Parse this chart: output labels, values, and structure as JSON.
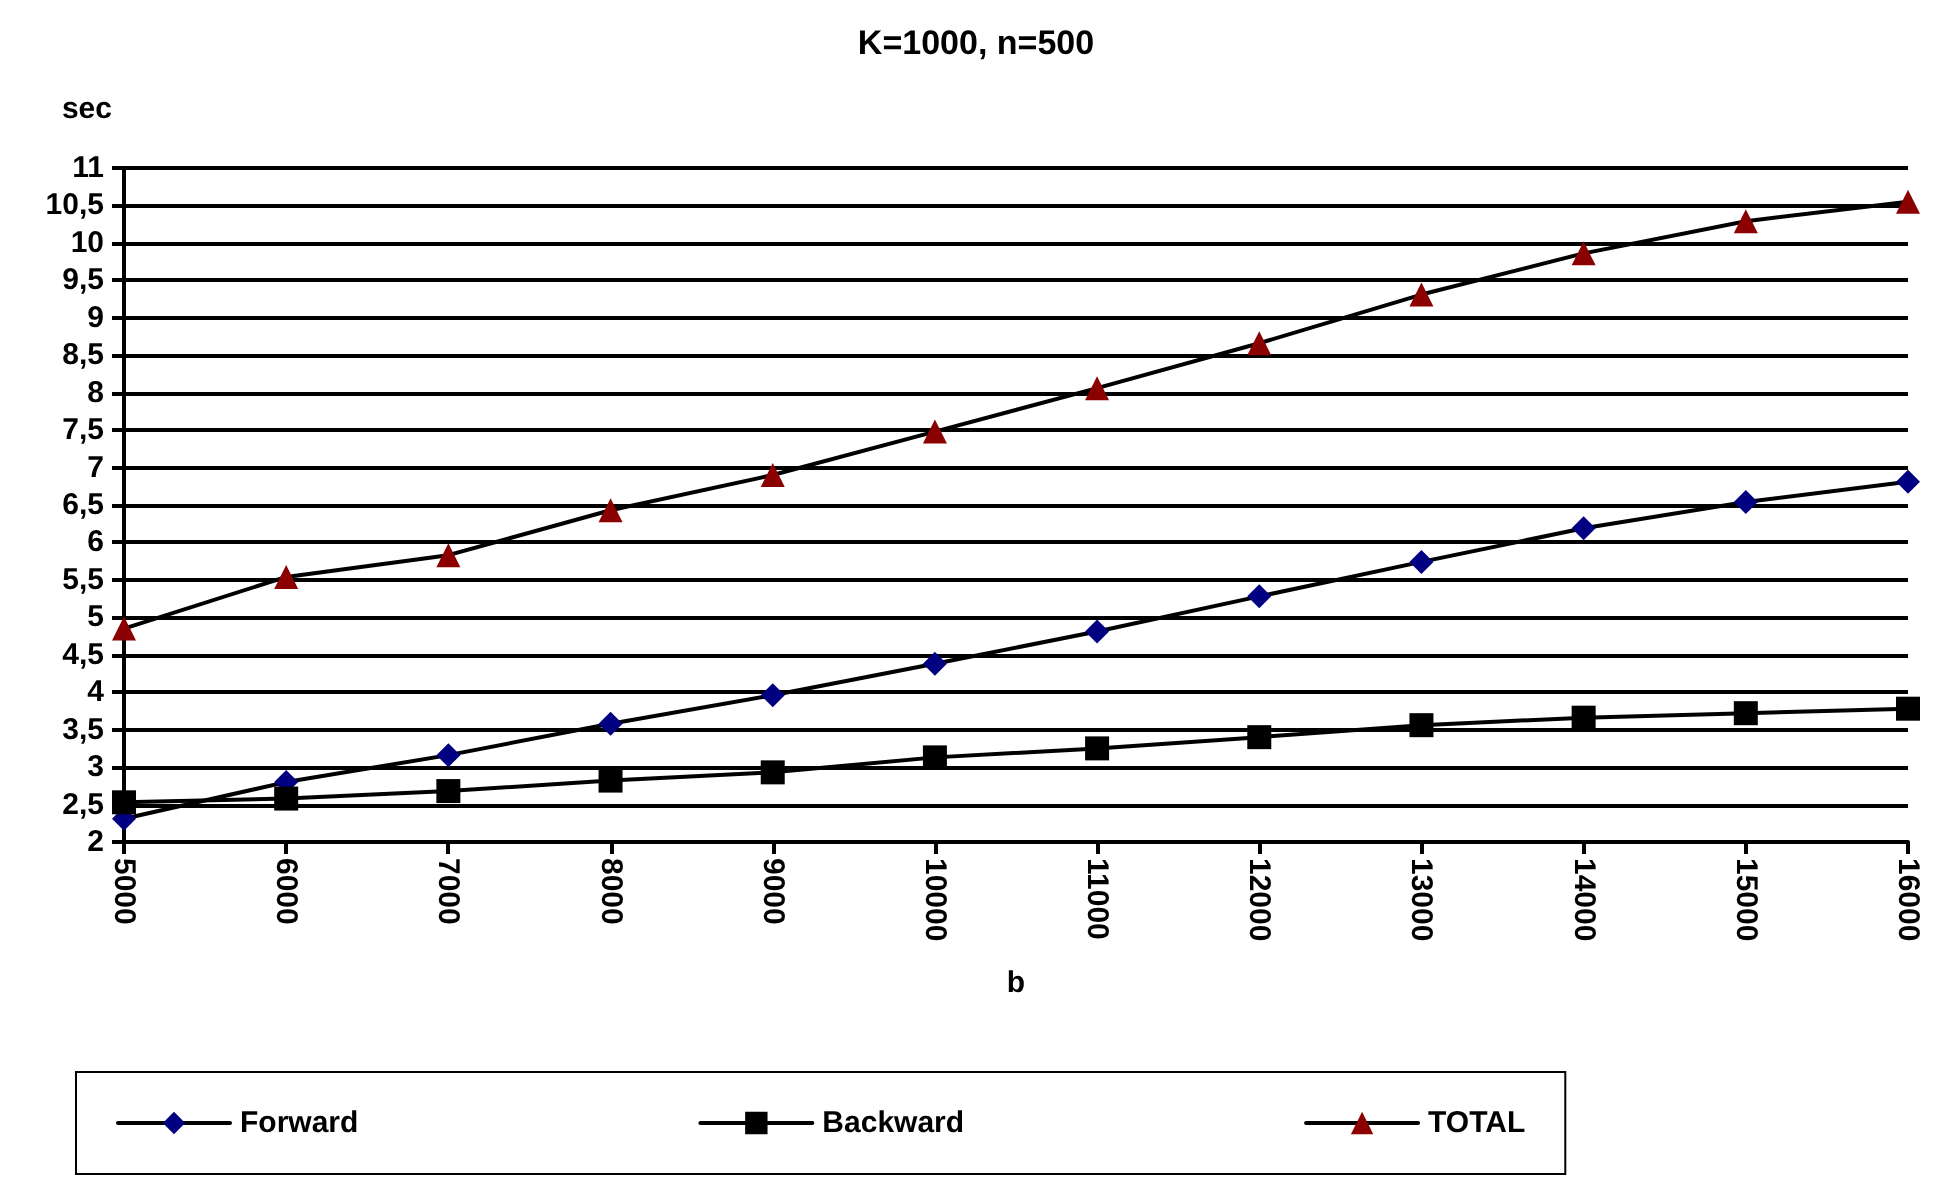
{
  "chart_data": {
    "type": "line",
    "title": "K=1000, n=500",
    "xlabel": "b",
    "ylabel": "sec",
    "categories": [
      "5000",
      "6000",
      "7000",
      "8000",
      "9000",
      "10000",
      "11000",
      "12000",
      "13000",
      "14000",
      "15000",
      "16000"
    ],
    "series": [
      {
        "name": "Forward",
        "color": "#000080",
        "marker": "diamond",
        "values": [
          2.31,
          2.8,
          3.16,
          3.58,
          3.96,
          4.38,
          4.81,
          5.28,
          5.74,
          6.19,
          6.54,
          6.81
        ]
      },
      {
        "name": "Backward",
        "color": "#000000",
        "marker": "square",
        "values": [
          2.53,
          2.58,
          2.68,
          2.82,
          2.93,
          3.13,
          3.25,
          3.4,
          3.56,
          3.66,
          3.72,
          3.78
        ]
      },
      {
        "name": "TOTAL",
        "color": "#8b0000",
        "marker": "triangle",
        "values": [
          4.85,
          5.54,
          5.83,
          6.43,
          6.9,
          7.48,
          8.06,
          8.66,
          9.31,
          9.86,
          10.29,
          10.55
        ]
      }
    ],
    "ylim": [
      2,
      11
    ],
    "yticks": [
      2,
      {
        "value": 2.5,
        "label": "2,5"
      },
      3,
      {
        "value": 3.5,
        "label": "3,5"
      },
      4,
      {
        "value": 4.5,
        "label": "4,5"
      },
      5,
      {
        "value": 5.5,
        "label": "5,5"
      },
      6,
      {
        "value": 6.5,
        "label": "6,5"
      },
      7,
      {
        "value": 7.5,
        "label": "7,5"
      },
      8,
      {
        "value": 8.5,
        "label": "8,5"
      },
      9,
      {
        "value": 9.5,
        "label": "9,5"
      },
      10,
      {
        "value": 10.5,
        "label": "10,5"
      },
      11
    ],
    "grid": "y",
    "legend": "bottom",
    "line_style": "solid"
  }
}
